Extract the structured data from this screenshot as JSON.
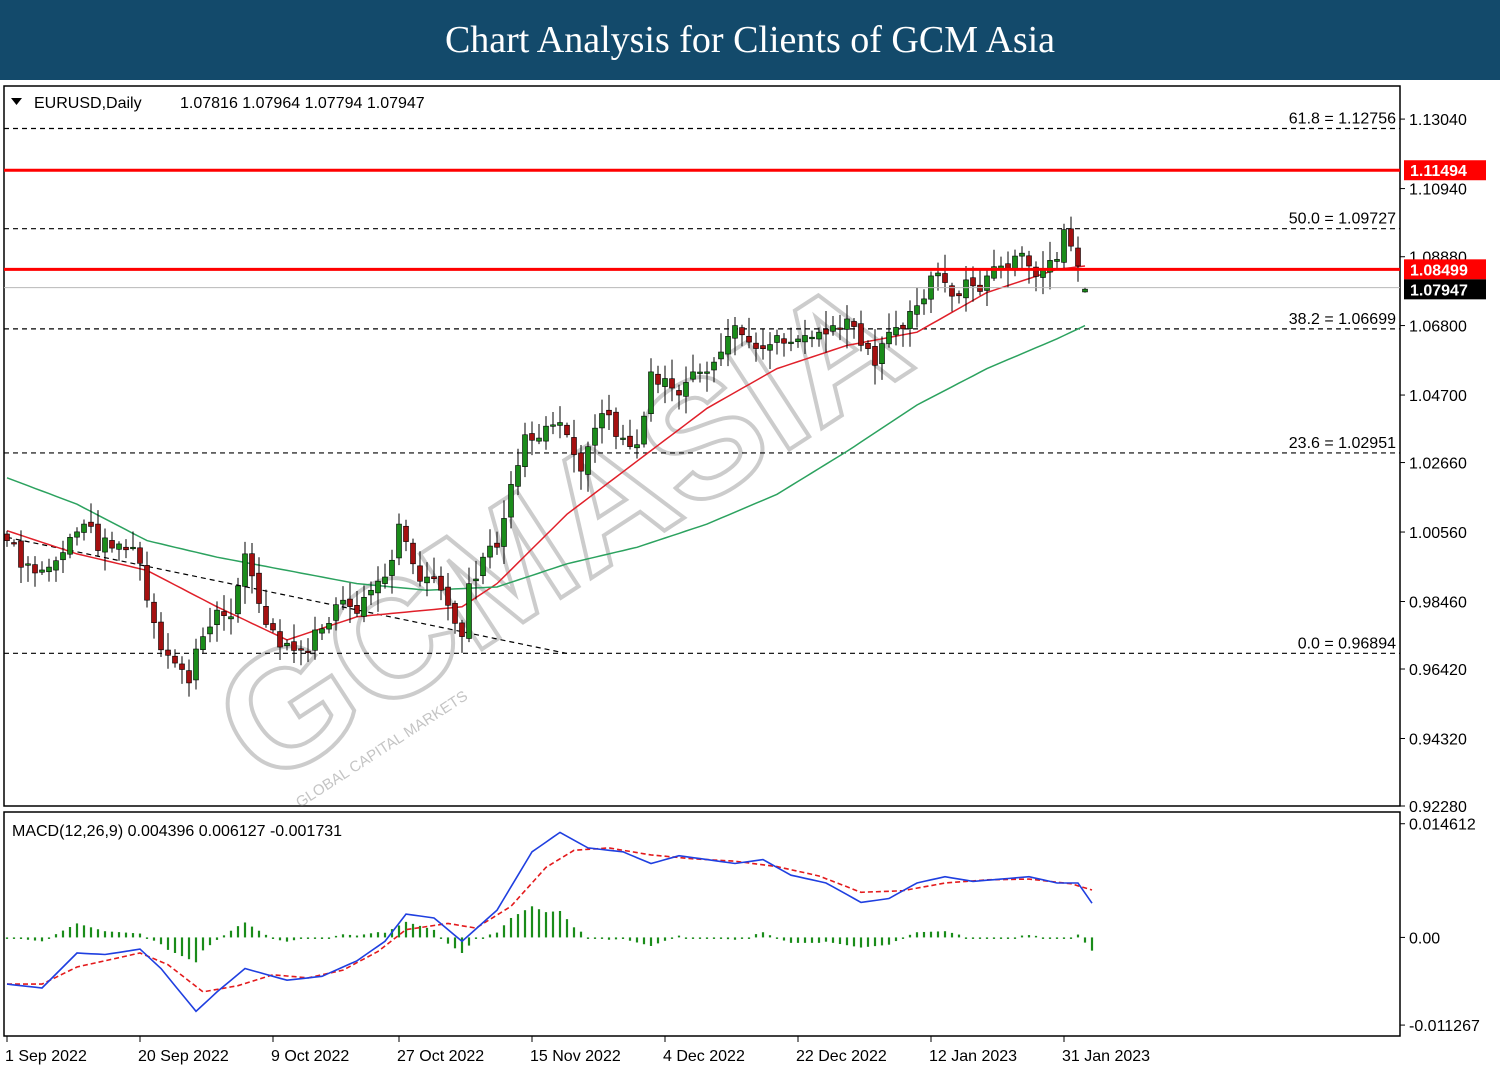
{
  "banner": {
    "title": "Chart Analysis for Clients of GCM Asia",
    "background": "#134a6b"
  },
  "watermark": {
    "brand": "GCMASIA",
    "tagline": "GLOBAL CAPITAL MARKETS"
  },
  "main_header": {
    "symbol": "EURUSD,Daily",
    "ohlc": "1.07816 1.07964 1.07794 1.07947"
  },
  "macd_header": "MACD(12,26,9) 0.004396 0.006127 -0.001731",
  "colors": {
    "bull": "#1a8c1a",
    "bear": "#a51010",
    "ma_fast": "#e0202a",
    "ma_slow": "#2ca25f",
    "macd": "#1f3fe0",
    "signal": "#e31a1c",
    "hist": "#1a8c1a",
    "resistance": "#ff0000"
  },
  "chart_data": [
    {
      "type": "candlestick",
      "symbol": "EURUSD",
      "timeframe": "Daily",
      "ylim": [
        0.9228,
        1.1404
      ],
      "y_ticks": [
        "1.13040",
        "1.10940",
        "1.08880",
        "1.06800",
        "1.04700",
        "1.02660",
        "1.00560",
        "0.98460",
        "0.96420",
        "0.94320",
        "0.92280"
      ],
      "x_ticks": [
        "1 Sep 2022",
        "20 Sep 2022",
        "9 Oct 2022",
        "27 Oct 2022",
        "15 Nov 2022",
        "4 Dec 2022",
        "22 Dec 2022",
        "12 Jan 2023",
        "31 Jan 2023"
      ],
      "x_tick_bar_index": [
        0,
        19,
        38,
        56,
        75,
        94,
        113,
        132,
        151
      ],
      "close_anchors": [
        [
          0,
          1.003
        ],
        [
          3,
          0.996
        ],
        [
          6,
          0.995
        ],
        [
          9,
          1.004
        ],
        [
          11,
          1.008
        ],
        [
          13,
          1.0
        ],
        [
          16,
          1.002
        ],
        [
          18,
          1.001
        ],
        [
          20,
          0.985
        ],
        [
          22,
          0.97
        ],
        [
          24,
          0.966
        ],
        [
          26,
          0.96
        ],
        [
          28,
          0.974
        ],
        [
          30,
          0.982
        ],
        [
          32,
          0.98
        ],
        [
          34,
          0.999
        ],
        [
          36,
          0.984
        ],
        [
          38,
          0.976
        ],
        [
          40,
          0.972
        ],
        [
          42,
          0.97
        ],
        [
          44,
          0.976
        ],
        [
          46,
          0.978
        ],
        [
          48,
          0.985
        ],
        [
          50,
          0.981
        ],
        [
          52,
          0.988
        ],
        [
          54,
          0.992
        ],
        [
          56,
          1.008
        ],
        [
          58,
          0.996
        ],
        [
          60,
          0.992
        ],
        [
          62,
          0.988
        ],
        [
          64,
          0.978
        ],
        [
          65,
          0.974
        ],
        [
          66,
          0.99
        ],
        [
          68,
          0.998
        ],
        [
          70,
          1.001
        ],
        [
          72,
          1.02
        ],
        [
          74,
          1.035
        ],
        [
          76,
          1.034
        ],
        [
          78,
          1.038
        ],
        [
          80,
          1.035
        ],
        [
          82,
          1.024
        ],
        [
          84,
          1.037
        ],
        [
          86,
          1.041
        ],
        [
          88,
          1.034
        ],
        [
          90,
          1.032
        ],
        [
          92,
          1.054
        ],
        [
          94,
          1.052
        ],
        [
          96,
          1.047
        ],
        [
          98,
          1.054
        ],
        [
          100,
          1.054
        ],
        [
          102,
          1.06
        ],
        [
          104,
          1.068
        ],
        [
          106,
          1.063
        ],
        [
          108,
          1.061
        ],
        [
          110,
          1.065
        ],
        [
          112,
          1.063
        ],
        [
          114,
          1.065
        ],
        [
          116,
          1.066
        ],
        [
          118,
          1.068
        ],
        [
          120,
          1.07
        ],
        [
          122,
          1.062
        ],
        [
          124,
          1.056
        ],
        [
          126,
          1.066
        ],
        [
          128,
          1.067
        ],
        [
          130,
          1.074
        ],
        [
          132,
          1.083
        ],
        [
          134,
          1.081
        ],
        [
          136,
          1.077
        ],
        [
          138,
          1.08
        ],
        [
          140,
          1.083
        ],
        [
          142,
          1.086
        ],
        [
          144,
          1.089
        ],
        [
          146,
          1.086
        ],
        [
          148,
          1.085
        ],
        [
          150,
          1.088
        ],
        [
          151,
          1.097
        ],
        [
          152,
          1.092
        ],
        [
          153,
          1.086
        ],
        [
          154,
          1.079
        ]
      ],
      "moving_averages": [
        {
          "period": 20,
          "color": "#e0202a",
          "anchors": [
            [
              0,
              1.006
            ],
            [
              10,
              0.999
            ],
            [
              20,
              0.994
            ],
            [
              30,
              0.983
            ],
            [
              40,
              0.973
            ],
            [
              50,
              0.98
            ],
            [
              60,
              0.982
            ],
            [
              65,
              0.983
            ],
            [
              70,
              0.99
            ],
            [
              80,
              1.011
            ],
            [
              90,
              1.027
            ],
            [
              100,
              1.043
            ],
            [
              110,
              1.055
            ],
            [
              120,
              1.062
            ],
            [
              130,
              1.066
            ],
            [
              140,
              1.078
            ],
            [
              150,
              1.085
            ],
            [
              154,
              1.086
            ]
          ]
        },
        {
          "period": 50,
          "color": "#2ca25f",
          "anchors": [
            [
              0,
              1.022
            ],
            [
              10,
              1.014
            ],
            [
              20,
              1.003
            ],
            [
              30,
              0.998
            ],
            [
              40,
              0.994
            ],
            [
              50,
              0.99
            ],
            [
              60,
              0.988
            ],
            [
              70,
              0.989
            ],
            [
              80,
              0.996
            ],
            [
              90,
              1.001
            ],
            [
              100,
              1.008
            ],
            [
              110,
              1.017
            ],
            [
              120,
              1.03
            ],
            [
              130,
              1.044
            ],
            [
              140,
              1.055
            ],
            [
              150,
              1.064
            ],
            [
              154,
              1.068
            ]
          ]
        }
      ],
      "fibonacci_levels": [
        {
          "label": "61.8 = 1.12756",
          "value": 1.12756
        },
        {
          "label": "50.0 = 1.09727",
          "value": 1.09727
        },
        {
          "label": "38.2 = 1.06699",
          "value": 1.06699
        },
        {
          "label": "23.6 = 1.02951",
          "value": 1.02951
        },
        {
          "label": "0.0 = 0.96894",
          "value": 0.96894
        }
      ],
      "resistance_lines": [
        {
          "label": "1.11494",
          "value": 1.11494
        },
        {
          "label": "1.08499",
          "value": 1.08499
        }
      ],
      "current_price": {
        "label": "1.07947",
        "value": 1.07947
      },
      "trendline": {
        "from": [
          0,
          1.004
        ],
        "to": [
          80,
          0.9689
        ]
      }
    },
    {
      "type": "line",
      "name": "MACD(12,26,9)",
      "ylim": [
        -0.01267,
        0.01612
      ],
      "y_ticks": [
        "0.014612",
        "0.00",
        "-0.011267"
      ],
      "macd_anchors": [
        [
          0,
          -0.006
        ],
        [
          5,
          -0.0065
        ],
        [
          10,
          -0.002
        ],
        [
          14,
          -0.0022
        ],
        [
          19,
          -0.0015
        ],
        [
          22,
          -0.004
        ],
        [
          27,
          -0.0095
        ],
        [
          30,
          -0.007
        ],
        [
          34,
          -0.004
        ],
        [
          40,
          -0.0055
        ],
        [
          45,
          -0.005
        ],
        [
          50,
          -0.003
        ],
        [
          54,
          -0.0005
        ],
        [
          57,
          0.003
        ],
        [
          61,
          0.0025
        ],
        [
          65,
          -0.0005
        ],
        [
          70,
          0.0035
        ],
        [
          75,
          0.011
        ],
        [
          79,
          0.0135
        ],
        [
          83,
          0.0115
        ],
        [
          88,
          0.011
        ],
        [
          92,
          0.0095
        ],
        [
          96,
          0.0105
        ],
        [
          100,
          0.01
        ],
        [
          104,
          0.0095
        ],
        [
          108,
          0.01
        ],
        [
          112,
          0.008
        ],
        [
          117,
          0.007
        ],
        [
          122,
          0.0045
        ],
        [
          126,
          0.005
        ],
        [
          130,
          0.007
        ],
        [
          134,
          0.0078
        ],
        [
          138,
          0.0072
        ],
        [
          142,
          0.0075
        ],
        [
          146,
          0.0078
        ],
        [
          150,
          0.007
        ],
        [
          153,
          0.007
        ],
        [
          155,
          0.0044
        ]
      ],
      "signal_anchors": [
        [
          0,
          -0.006
        ],
        [
          5,
          -0.006
        ],
        [
          10,
          -0.0038
        ],
        [
          15,
          -0.0028
        ],
        [
          19,
          -0.002
        ],
        [
          23,
          -0.0035
        ],
        [
          28,
          -0.007
        ],
        [
          33,
          -0.0062
        ],
        [
          38,
          -0.0048
        ],
        [
          43,
          -0.0052
        ],
        [
          48,
          -0.0042
        ],
        [
          53,
          -0.0018
        ],
        [
          57,
          0.001
        ],
        [
          63,
          0.0018
        ],
        [
          67,
          0.0012
        ],
        [
          72,
          0.004
        ],
        [
          77,
          0.009
        ],
        [
          81,
          0.0112
        ],
        [
          86,
          0.0115
        ],
        [
          92,
          0.0106
        ],
        [
          98,
          0.0101
        ],
        [
          104,
          0.0098
        ],
        [
          110,
          0.0091
        ],
        [
          116,
          0.0079
        ],
        [
          122,
          0.0058
        ],
        [
          128,
          0.006
        ],
        [
          134,
          0.007
        ],
        [
          140,
          0.0074
        ],
        [
          146,
          0.0075
        ],
        [
          152,
          0.0069
        ],
        [
          155,
          0.0061
        ]
      ]
    }
  ]
}
